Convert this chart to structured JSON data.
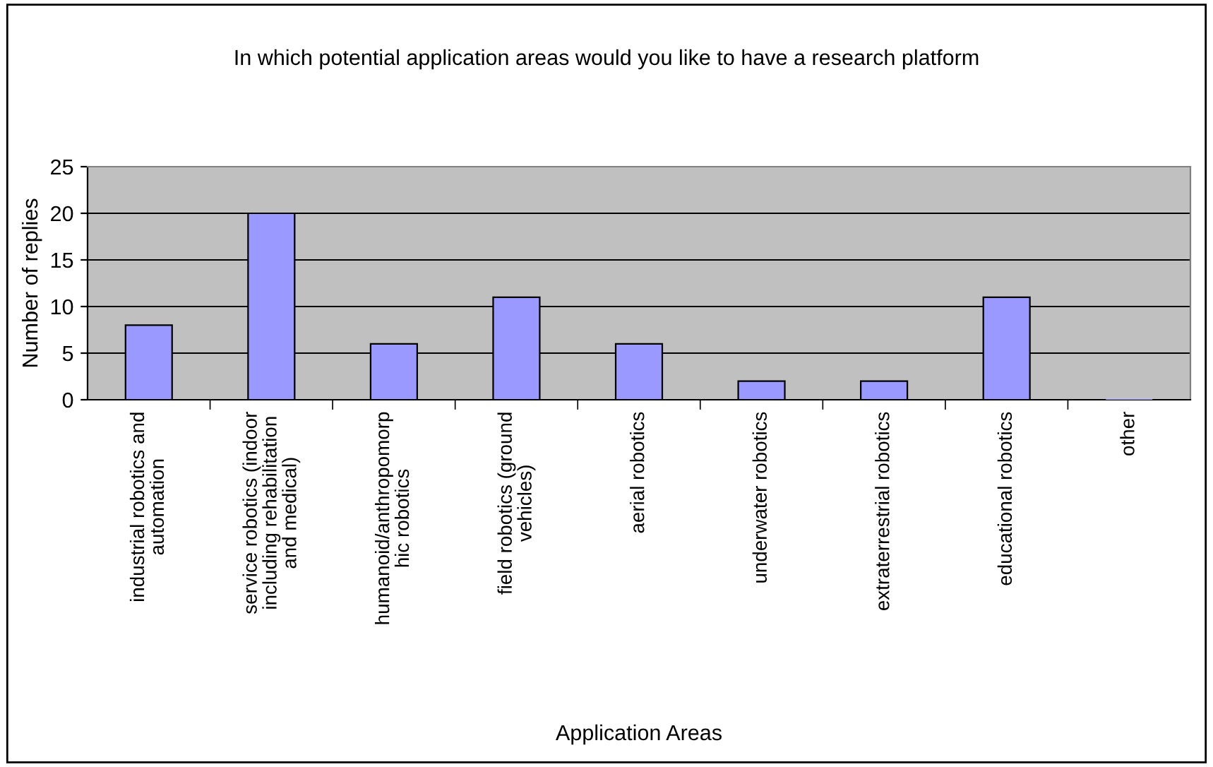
{
  "chart_data": {
    "type": "bar",
    "title": "In which potential application areas would you like to have a research platform",
    "xlabel": "Application Areas",
    "ylabel": "Number of replies",
    "categories": [
      "industrial robotics and\nautomation",
      "service robotics (indoor\nincluding rehabilitation\nand medical)",
      "humanoid/anthropomorp\nhic robotics",
      "field robotics (ground\nvehicles)",
      "aerial robotics",
      "underwater robotics",
      "extraterrestrial robotics",
      "educational robotics",
      "other"
    ],
    "values": [
      8,
      20,
      6,
      11,
      6,
      2,
      2,
      11,
      0
    ],
    "color": "#9999ff",
    "ylim": [
      0,
      25
    ],
    "yticks": [
      0,
      5,
      10,
      15,
      20,
      25
    ],
    "grid": "y",
    "legend": false
  }
}
